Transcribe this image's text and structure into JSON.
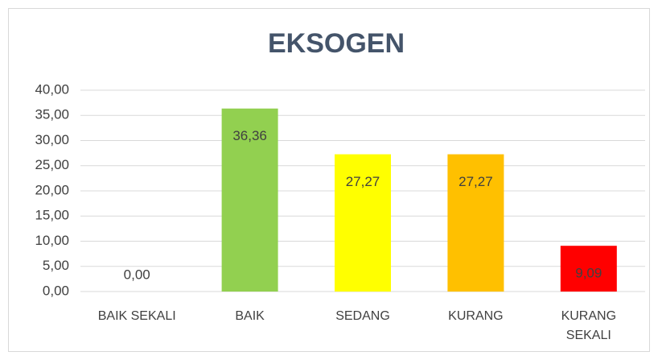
{
  "chart_data": {
    "type": "bar",
    "title": "EKSOGEN",
    "categories": [
      "BAIK SEKALI",
      "BAIK",
      "SEDANG",
      "KURANG",
      "KURANG SEKALI"
    ],
    "values": [
      0,
      36.36,
      27.27,
      27.27,
      9.09
    ],
    "value_labels": [
      "0,00",
      "36,36",
      "27,27",
      "27,27",
      "9,09"
    ],
    "colors": [
      "#5b9bd5",
      "#92d050",
      "#ffff00",
      "#ffc000",
      "#ff0000"
    ],
    "ylim": [
      0,
      40
    ],
    "yticks": [
      {
        "value": 0,
        "label": "0,00"
      },
      {
        "value": 5,
        "label": "5,00"
      },
      {
        "value": 10,
        "label": "10,00"
      },
      {
        "value": 15,
        "label": "15,00"
      },
      {
        "value": 20,
        "label": "20,00"
      },
      {
        "value": 25,
        "label": "25,00"
      },
      {
        "value": 30,
        "label": "30,00"
      },
      {
        "value": 35,
        "label": "35,00"
      },
      {
        "value": 40,
        "label": "40,00"
      }
    ],
    "grid": true
  }
}
